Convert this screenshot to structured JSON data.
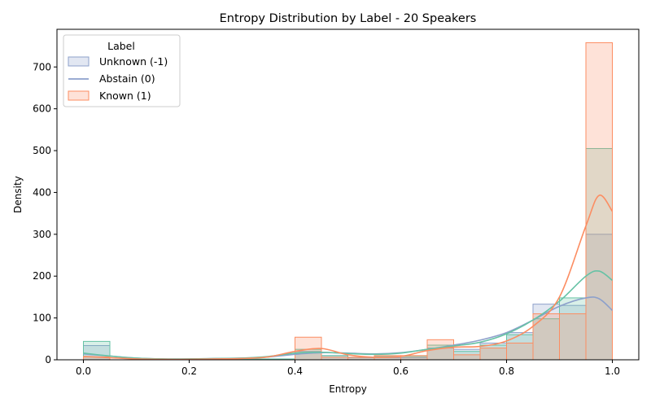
{
  "chart_data": {
    "type": "histogram",
    "title": "Entropy Distribution by Label - 20 Speakers",
    "xlabel": "Entropy",
    "ylabel": "Density",
    "xlim": [
      -0.05,
      1.05
    ],
    "ylim": [
      0,
      790
    ],
    "xticks": [
      0.0,
      0.2,
      0.4,
      0.6,
      0.8,
      1.0
    ],
    "xtick_labels": [
      "0.0",
      "0.2",
      "0.4",
      "0.6",
      "0.8",
      "1.0"
    ],
    "yticks": [
      0,
      100,
      200,
      300,
      400,
      500,
      600,
      700
    ],
    "ytick_labels": [
      "0",
      "100",
      "200",
      "300",
      "400",
      "500",
      "600",
      "700"
    ],
    "grid": false,
    "legend": {
      "title": "Label",
      "placement": "top-left",
      "entries": [
        "Unknown (-1)",
        "Abstain (0)",
        "Known (1)"
      ]
    },
    "bin_edges": [
      0.0,
      0.05,
      0.1,
      0.15,
      0.2,
      0.25,
      0.3,
      0.35,
      0.4,
      0.45,
      0.5,
      0.55,
      0.6,
      0.65,
      0.7,
      0.75,
      0.8,
      0.85,
      0.9,
      0.95,
      1.0
    ],
    "series": [
      {
        "name": "Unknown (-1)",
        "color": "#8da0cb",
        "style": "step",
        "values": [
          34,
          0,
          0,
          0,
          2,
          2,
          2,
          2,
          20,
          10,
          5,
          5,
          5,
          28,
          25,
          40,
          65,
          133,
          130,
          300
        ],
        "kde_x": [
          0.0,
          0.05,
          0.1,
          0.15,
          0.2,
          0.25,
          0.3,
          0.35,
          0.4,
          0.45,
          0.5,
          0.55,
          0.6,
          0.65,
          0.7,
          0.75,
          0.8,
          0.85,
          0.9,
          0.95,
          0.975,
          1.0
        ],
        "kde_y": [
          14,
          9,
          4,
          2,
          2,
          3,
          4,
          7,
          13,
          17,
          16,
          14,
          17,
          25,
          35,
          47,
          65,
          95,
          128,
          148,
          146,
          118
        ]
      },
      {
        "name": "Abstain (0)",
        "color": "#66c2a5",
        "style": "kde",
        "values": [
          44,
          0,
          0,
          0,
          2,
          2,
          2,
          2,
          25,
          10,
          6,
          8,
          8,
          35,
          20,
          35,
          60,
          98,
          148,
          505
        ],
        "kde_x": [
          0.0,
          0.05,
          0.1,
          0.15,
          0.2,
          0.25,
          0.3,
          0.35,
          0.4,
          0.45,
          0.5,
          0.55,
          0.6,
          0.65,
          0.7,
          0.75,
          0.8,
          0.85,
          0.9,
          0.95,
          0.975,
          1.0
        ],
        "kde_y": [
          16,
          9,
          4,
          2,
          2,
          3,
          4,
          8,
          16,
          18,
          15,
          13,
          16,
          25,
          33,
          42,
          62,
          95,
          140,
          200,
          212,
          190
        ]
      },
      {
        "name": "Known (1)",
        "color": "#fc8d62",
        "style": "bar",
        "values": [
          7,
          0,
          0,
          0,
          0,
          0,
          0,
          0,
          54,
          6,
          6,
          10,
          10,
          48,
          12,
          28,
          40,
          110,
          110,
          758
        ],
        "kde_x": [
          0.0,
          0.05,
          0.1,
          0.15,
          0.2,
          0.25,
          0.3,
          0.35,
          0.4,
          0.45,
          0.5,
          0.55,
          0.6,
          0.65,
          0.7,
          0.75,
          0.8,
          0.85,
          0.9,
          0.95,
          0.975,
          1.0
        ],
        "kde_y": [
          8,
          5,
          2,
          1,
          1,
          2,
          3,
          7,
          20,
          27,
          12,
          6,
          8,
          22,
          30,
          32,
          45,
          80,
          150,
          320,
          393,
          355
        ]
      }
    ]
  }
}
